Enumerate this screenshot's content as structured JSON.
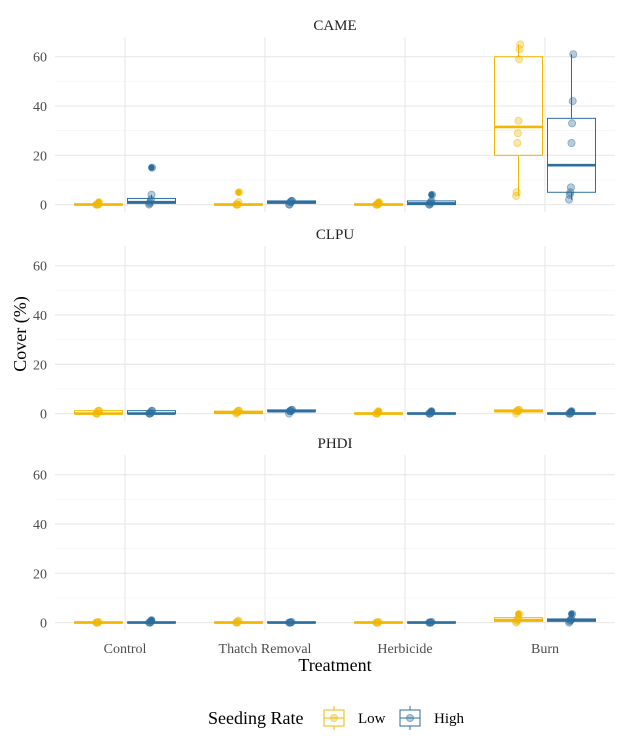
{
  "chart_data": {
    "type": "box",
    "xlabel": "Treatment",
    "ylabel": "Cover (%)",
    "ylim": [
      -3,
      68
    ],
    "yticks": [
      0,
      20,
      40,
      60
    ],
    "grid": true,
    "categories": [
      "Control",
      "Thatch Removal",
      "Herbicide",
      "Burn"
    ],
    "legend": {
      "title": "Seeding Rate",
      "position": "bottom",
      "entries": [
        {
          "name": "Low",
          "color": "#F2B701"
        },
        {
          "name": "High",
          "color": "#2C6E9E"
        }
      ]
    },
    "panels": [
      {
        "title": "CAME",
        "groups": [
          {
            "treatment": "Control",
            "rate": "Low",
            "q1": 0,
            "median": 0,
            "q3": 0.3,
            "whisker_low": 0,
            "whisker_high": 0.5,
            "points": [
              0,
              0,
              0,
              0,
              0,
              1
            ],
            "outliers": [
              1
            ]
          },
          {
            "treatment": "Control",
            "rate": "High",
            "q1": 0.5,
            "median": 1,
            "q3": 2.5,
            "whisker_low": 0,
            "whisker_high": 4,
            "points": [
              0,
              0.5,
              1,
              2,
              4,
              15
            ],
            "outliers": [
              15
            ]
          },
          {
            "treatment": "Thatch Removal",
            "rate": "Low",
            "q1": 0,
            "median": 0,
            "q3": 0.3,
            "whisker_low": 0,
            "whisker_high": 0.5,
            "points": [
              0,
              0,
              0,
              0,
              1,
              5
            ],
            "outliers": [
              5
            ]
          },
          {
            "treatment": "Thatch Removal",
            "rate": "High",
            "q1": 0.5,
            "median": 1,
            "q3": 1.5,
            "whisker_low": 0,
            "whisker_high": 1.5,
            "points": [
              0,
              0,
              1,
              1,
              1.5,
              1.5
            ],
            "outliers": []
          },
          {
            "treatment": "Herbicide",
            "rate": "Low",
            "q1": 0,
            "median": 0,
            "q3": 0.3,
            "whisker_low": 0,
            "whisker_high": 0.5,
            "points": [
              0,
              0,
              0,
              0,
              0.5,
              1
            ],
            "outliers": [
              1
            ]
          },
          {
            "treatment": "Herbicide",
            "rate": "High",
            "q1": 0,
            "median": 0.5,
            "q3": 1.5,
            "whisker_low": 0,
            "whisker_high": 1.5,
            "points": [
              0,
              0,
              0.5,
              1,
              1.5,
              4
            ],
            "outliers": [
              4
            ]
          },
          {
            "treatment": "Burn",
            "rate": "Low",
            "q1": 20,
            "median": 31.5,
            "q3": 60,
            "whisker_low": 3.5,
            "whisker_high": 65,
            "points": [
              3.5,
              5,
              25,
              29,
              34,
              59,
              63,
              65
            ],
            "outliers": []
          },
          {
            "treatment": "Burn",
            "rate": "High",
            "q1": 5,
            "median": 16,
            "q3": 35,
            "whisker_low": 2,
            "whisker_high": 61,
            "points": [
              2,
              4,
              5,
              7,
              25,
              33,
              42,
              61
            ],
            "outliers": []
          }
        ]
      },
      {
        "title": "CLPU",
        "groups": [
          {
            "treatment": "Control",
            "rate": "Low",
            "q1": 0,
            "median": 0,
            "q3": 1.2,
            "whisker_low": 0,
            "whisker_high": 1.2,
            "points": [
              0,
              0,
              0,
              1,
              1,
              1.2
            ],
            "outliers": []
          },
          {
            "treatment": "Control",
            "rate": "High",
            "q1": 0,
            "median": 0,
            "q3": 1.2,
            "whisker_low": 0,
            "whisker_high": 1.2,
            "points": [
              0,
              0,
              0,
              0.5,
              1,
              1.2
            ],
            "outliers": []
          },
          {
            "treatment": "Thatch Removal",
            "rate": "Low",
            "q1": 0,
            "median": 0.5,
            "q3": 1,
            "whisker_low": 0,
            "whisker_high": 1.2,
            "points": [
              0,
              0.5,
              0.5,
              1,
              1,
              1.2
            ],
            "outliers": []
          },
          {
            "treatment": "Thatch Removal",
            "rate": "High",
            "q1": 1,
            "median": 1,
            "q3": 1.5,
            "whisker_low": 0,
            "whisker_high": 1.5,
            "points": [
              0,
              1,
              1,
              1,
              1.5,
              1.5
            ],
            "outliers": []
          },
          {
            "treatment": "Herbicide",
            "rate": "Low",
            "q1": 0,
            "median": 0,
            "q3": 0.3,
            "whisker_low": 0,
            "whisker_high": 0.5,
            "points": [
              0,
              0,
              0,
              0.5,
              1
            ],
            "outliers": [
              1
            ]
          },
          {
            "treatment": "Herbicide",
            "rate": "High",
            "q1": 0,
            "median": 0,
            "q3": 0.3,
            "whisker_low": 0,
            "whisker_high": 0.5,
            "points": [
              0,
              0,
              0,
              0.5,
              1
            ],
            "outliers": [
              1
            ]
          },
          {
            "treatment": "Burn",
            "rate": "Low",
            "q1": 1,
            "median": 1,
            "q3": 1.5,
            "whisker_low": 0,
            "whisker_high": 1.5,
            "points": [
              0,
              1,
              1,
              1,
              1.5,
              1.5
            ],
            "outliers": []
          },
          {
            "treatment": "Burn",
            "rate": "High",
            "q1": 0,
            "median": 0,
            "q3": 0.3,
            "whisker_low": 0,
            "whisker_high": 0.5,
            "points": [
              0,
              0,
              0,
              0.5,
              1
            ],
            "outliers": [
              1
            ]
          }
        ]
      },
      {
        "title": "PHDI",
        "groups": [
          {
            "treatment": "Control",
            "rate": "Low",
            "q1": 0,
            "median": 0,
            "q3": 0.3,
            "whisker_low": 0,
            "whisker_high": 0.5,
            "points": [
              0,
              0,
              0,
              0,
              0.3
            ],
            "outliers": []
          },
          {
            "treatment": "Control",
            "rate": "High",
            "q1": 0,
            "median": 0,
            "q3": 0.3,
            "whisker_low": 0,
            "whisker_high": 0.5,
            "points": [
              0,
              0,
              0,
              0.5,
              1
            ],
            "outliers": [
              1
            ]
          },
          {
            "treatment": "Thatch Removal",
            "rate": "Low",
            "q1": 0,
            "median": 0,
            "q3": 0.3,
            "whisker_low": 0,
            "whisker_high": 0.5,
            "points": [
              0,
              0,
              0,
              0.5,
              0.8
            ],
            "outliers": []
          },
          {
            "treatment": "Thatch Removal",
            "rate": "High",
            "q1": 0,
            "median": 0,
            "q3": 0.3,
            "whisker_low": 0,
            "whisker_high": 0.3,
            "points": [
              0,
              0,
              0,
              0,
              0.3
            ],
            "outliers": []
          },
          {
            "treatment": "Herbicide",
            "rate": "Low",
            "q1": 0,
            "median": 0,
            "q3": 0.3,
            "whisker_low": 0,
            "whisker_high": 0.3,
            "points": [
              0,
              0,
              0,
              0,
              0.3
            ],
            "outliers": []
          },
          {
            "treatment": "Herbicide",
            "rate": "High",
            "q1": 0,
            "median": 0,
            "q3": 0.3,
            "whisker_low": 0,
            "whisker_high": 0.3,
            "points": [
              0,
              0,
              0,
              0,
              0.3
            ],
            "outliers": []
          },
          {
            "treatment": "Burn",
            "rate": "Low",
            "q1": 0.5,
            "median": 1,
            "q3": 2,
            "whisker_low": 0,
            "whisker_high": 2,
            "points": [
              0,
              0.5,
              1,
              1.5,
              2,
              3.5
            ],
            "outliers": [
              3.5
            ]
          },
          {
            "treatment": "Burn",
            "rate": "High",
            "q1": 0.5,
            "median": 1,
            "q3": 1.5,
            "whisker_low": 0,
            "whisker_high": 1.5,
            "points": [
              0,
              0.5,
              1,
              1,
              1.5,
              3.5
            ],
            "outliers": [
              3.5
            ]
          }
        ]
      }
    ]
  }
}
